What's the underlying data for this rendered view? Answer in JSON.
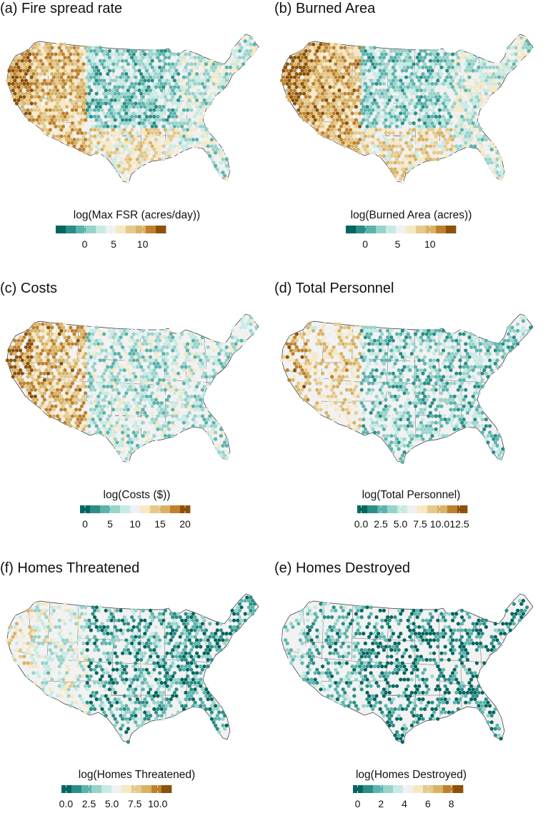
{
  "colors": {
    "land": "#f2f2f2",
    "border": "#333333",
    "palette": [
      "#01665e",
      "#2a8e86",
      "#5ab4ac",
      "#97d3cb",
      "#c7eae5",
      "#f0f0f0",
      "#f6e8c3",
      "#e6c98c",
      "#d8b365",
      "#bf812d",
      "#8c510a"
    ]
  },
  "panels": [
    {
      "id": "a",
      "title": "(a) Fire spread rate",
      "legend_title": "log(Max FSR (acres/day))",
      "legend_range": [
        -5,
        14
      ],
      "legend_ticks": [
        {
          "v": 0,
          "label": "0"
        },
        {
          "v": 5,
          "label": "5"
        },
        {
          "v": 10,
          "label": "10"
        }
      ],
      "profile": {
        "west": 0.72,
        "south": 0.58,
        "midwest": 0.32,
        "east": 0.42,
        "dotDensity": 0.95
      }
    },
    {
      "id": "b",
      "title": "(b) Burned Area",
      "legend_title": "log(Burned Area (acres))",
      "legend_range": [
        -3,
        14
      ],
      "legend_ticks": [
        {
          "v": 0,
          "label": "0"
        },
        {
          "v": 5,
          "label": "5"
        },
        {
          "v": 10,
          "label": "10"
        }
      ],
      "profile": {
        "west": 0.74,
        "south": 0.6,
        "midwest": 0.34,
        "east": 0.44,
        "dotDensity": 0.95
      }
    },
    {
      "id": "c",
      "title": "(c) Costs",
      "legend_title": "log(Costs ($))",
      "legend_range": [
        -1,
        21
      ],
      "legend_ticks": [
        {
          "v": 0,
          "label": "0"
        },
        {
          "v": 5,
          "label": "5"
        },
        {
          "v": 10,
          "label": "10"
        },
        {
          "v": 15,
          "label": "15"
        },
        {
          "v": 20,
          "label": "20"
        }
      ],
      "profile": {
        "west": 0.74,
        "south": 0.42,
        "midwest": 0.4,
        "east": 0.4,
        "dotDensity": 0.78
      }
    },
    {
      "id": "d",
      "title": "(d) Total Personnel",
      "legend_title": "log(Total Personnel)",
      "legend_range": [
        -0.5,
        13.5
      ],
      "legend_ticks": [
        {
          "v": 0,
          "label": "0.0"
        },
        {
          "v": 2.5,
          "label": "2.5"
        },
        {
          "v": 5,
          "label": "5.0"
        },
        {
          "v": 7.5,
          "label": "7.5"
        },
        {
          "v": 10,
          "label": "10.0"
        },
        {
          "v": 12.5,
          "label": "12.5"
        }
      ],
      "profile": {
        "west": 0.64,
        "south": 0.34,
        "midwest": 0.3,
        "east": 0.28,
        "dotDensity": 0.66
      }
    },
    {
      "id": "f",
      "title": "(f) Homes Threatened",
      "legend_title": "log(Homes Threatened)",
      "legend_range": [
        -0.5,
        11.5
      ],
      "legend_ticks": [
        {
          "v": 0,
          "label": "0.0"
        },
        {
          "v": 2.5,
          "label": "2.5"
        },
        {
          "v": 5,
          "label": "5.0"
        },
        {
          "v": 7.5,
          "label": "7.5"
        },
        {
          "v": 10,
          "label": "10.0"
        }
      ],
      "profile": {
        "west": 0.46,
        "south": 0.22,
        "midwest": 0.22,
        "east": 0.16,
        "dotDensity": 0.55
      }
    },
    {
      "id": "e",
      "title": "(e) Homes Destroyed",
      "legend_title": "log(Homes Destroyed)",
      "legend_range": [
        -0.4,
        9
      ],
      "legend_ticks": [
        {
          "v": 0,
          "label": "0"
        },
        {
          "v": 2,
          "label": "2"
        },
        {
          "v": 4,
          "label": "4"
        },
        {
          "v": 6,
          "label": "6"
        },
        {
          "v": 8,
          "label": "8"
        }
      ],
      "profile": {
        "west": 0.24,
        "south": 0.12,
        "midwest": 0.12,
        "east": 0.1,
        "dotDensity": 0.48
      }
    }
  ]
}
